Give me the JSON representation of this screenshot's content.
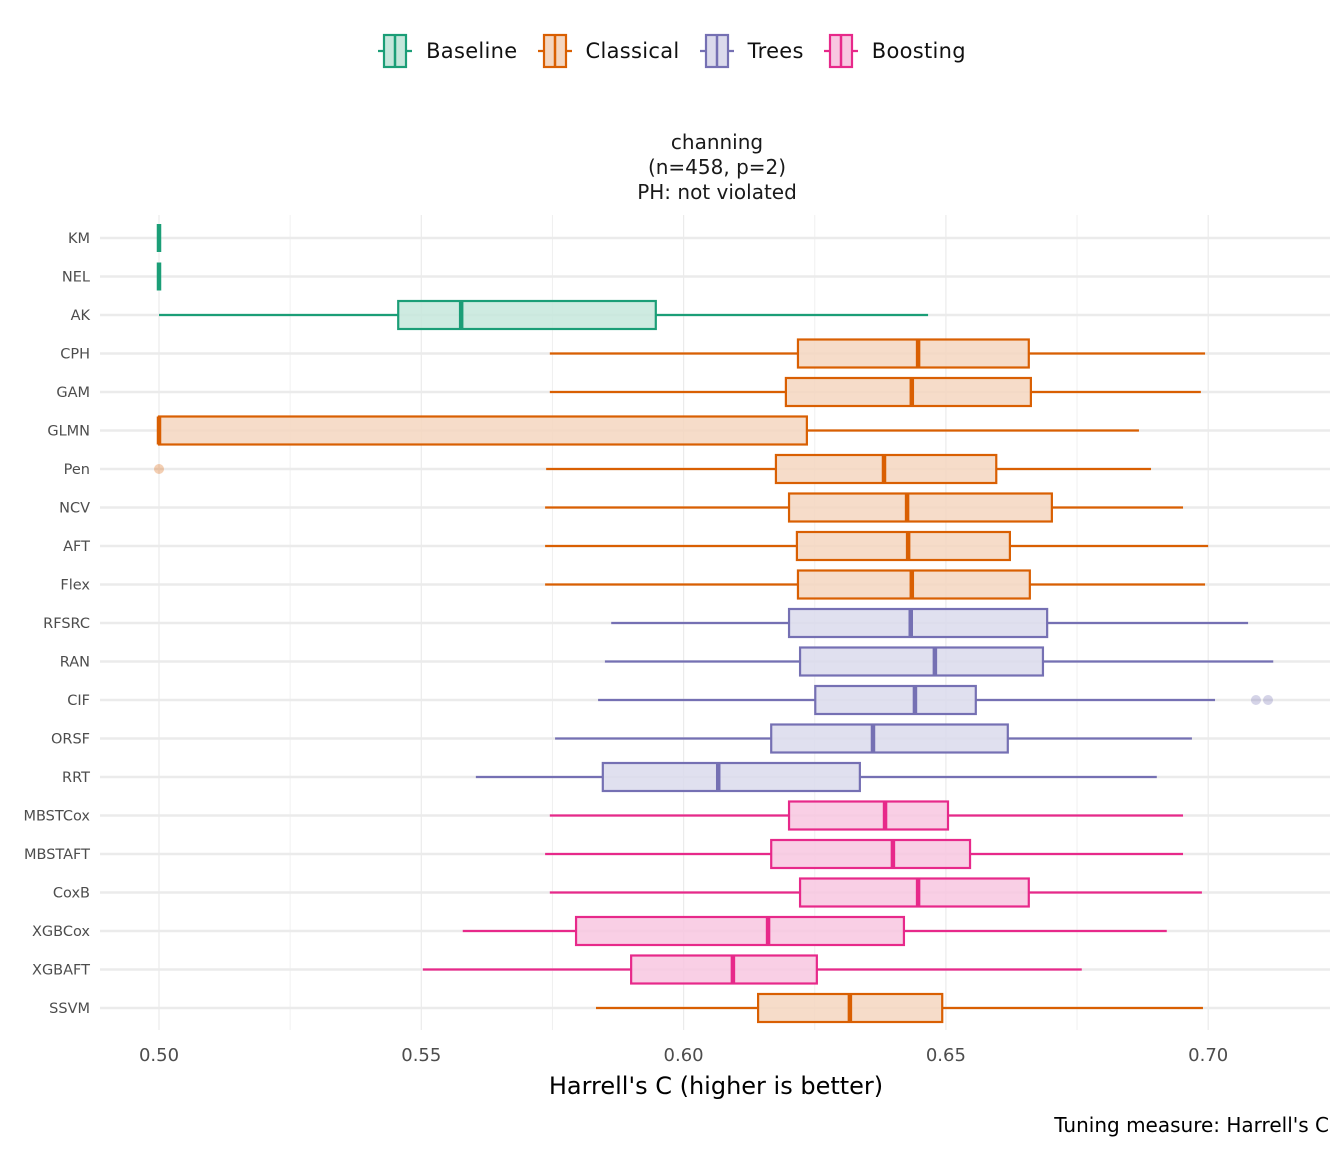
{
  "legend": {
    "items": [
      {
        "label": "Baseline",
        "group": "Baseline"
      },
      {
        "label": "Classical",
        "group": "Classical"
      },
      {
        "label": "Trees",
        "group": "Trees"
      },
      {
        "label": "Boosting",
        "group": "Boosting"
      }
    ]
  },
  "colors": {
    "Baseline": {
      "stroke": "#1b9e77",
      "fill": "#c5e7dc"
    },
    "Classical": {
      "stroke": "#d95f02",
      "fill": "#f4d6c0"
    },
    "Trees": {
      "stroke": "#7570b3",
      "fill": "#dbdaec"
    },
    "Boosting": {
      "stroke": "#e7298a",
      "fill": "#f8c7e1"
    }
  },
  "chart_data": {
    "type": "boxplot",
    "title": [
      "channing",
      "(n=458, p=2)",
      "PH: not violated"
    ],
    "xlabel": "Harrell's C (higher is better)",
    "ylabel": "",
    "caption": "Tuning measure: Harrell's C",
    "xlim": [
      0.489,
      0.723
    ],
    "xticks": [
      0.5,
      0.55,
      0.6,
      0.65,
      0.7
    ],
    "xtick_labels": [
      "0.50",
      "0.55",
      "0.60",
      "0.65",
      "0.70"
    ],
    "grid": true,
    "legend_position": "top",
    "categories": [
      "KM",
      "NEL",
      "AK",
      "CPH",
      "GAM",
      "GLMN",
      "Pen",
      "NCV",
      "AFT",
      "Flex",
      "RFSRC",
      "RAN",
      "CIF",
      "ORSF",
      "RRT",
      "MBSTCox",
      "MBSTAFT",
      "CoxB",
      "XGBCox",
      "XGBAFT",
      "SSVM"
    ],
    "boxes": [
      {
        "name": "KM",
        "group": "Baseline",
        "min": 0.5,
        "q1": 0.5,
        "median": 0.5,
        "q3": 0.5,
        "max": 0.5,
        "outliers": []
      },
      {
        "name": "NEL",
        "group": "Baseline",
        "min": 0.5,
        "q1": 0.5,
        "median": 0.5,
        "q3": 0.5,
        "max": 0.5,
        "outliers": []
      },
      {
        "name": "AK",
        "group": "Baseline",
        "min": 0.5,
        "q1": 0.5456,
        "median": 0.5576,
        "q3": 0.5947,
        "max": 0.6466,
        "outliers": []
      },
      {
        "name": "CPH",
        "group": "Classical",
        "min": 0.5745,
        "q1": 0.6218,
        "median": 0.6447,
        "q3": 0.6658,
        "max": 0.6994,
        "outliers": []
      },
      {
        "name": "GAM",
        "group": "Classical",
        "min": 0.5745,
        "q1": 0.6195,
        "median": 0.6435,
        "q3": 0.6662,
        "max": 0.6986,
        "outliers": []
      },
      {
        "name": "GLMN",
        "group": "Classical",
        "min": 0.5,
        "q1": 0.5,
        "median": 0.5,
        "q3": 0.6235,
        "max": 0.6868,
        "outliers": []
      },
      {
        "name": "Pen",
        "group": "Classical",
        "min": 0.5738,
        "q1": 0.6176,
        "median": 0.6382,
        "q3": 0.6596,
        "max": 0.6891,
        "outliers": [
          0.5
        ]
      },
      {
        "name": "NCV",
        "group": "Classical",
        "min": 0.5736,
        "q1": 0.6201,
        "median": 0.6426,
        "q3": 0.6702,
        "max": 0.6952,
        "outliers": []
      },
      {
        "name": "AFT",
        "group": "Classical",
        "min": 0.5736,
        "q1": 0.6216,
        "median": 0.6428,
        "q3": 0.6622,
        "max": 0.7,
        "outliers": []
      },
      {
        "name": "Flex",
        "group": "Classical",
        "min": 0.5736,
        "q1": 0.6218,
        "median": 0.6435,
        "q3": 0.666,
        "max": 0.6994,
        "outliers": []
      },
      {
        "name": "RFSRC",
        "group": "Trees",
        "min": 0.5862,
        "q1": 0.6201,
        "median": 0.6433,
        "q3": 0.6693,
        "max": 0.7076,
        "outliers": []
      },
      {
        "name": "RAN",
        "group": "Trees",
        "min": 0.585,
        "q1": 0.6222,
        "median": 0.6479,
        "q3": 0.6685,
        "max": 0.7124,
        "outliers": []
      },
      {
        "name": "CIF",
        "group": "Trees",
        "min": 0.5837,
        "q1": 0.6251,
        "median": 0.6441,
        "q3": 0.6557,
        "max": 0.7013,
        "outliers": [
          0.7091,
          0.7114
        ]
      },
      {
        "name": "ORSF",
        "group": "Trees",
        "min": 0.5755,
        "q1": 0.6167,
        "median": 0.6361,
        "q3": 0.6618,
        "max": 0.6969,
        "outliers": []
      },
      {
        "name": "RRT",
        "group": "Trees",
        "min": 0.5604,
        "q1": 0.5846,
        "median": 0.6066,
        "q3": 0.6336,
        "max": 0.6902,
        "outliers": []
      },
      {
        "name": "MBSTCox",
        "group": "Boosting",
        "min": 0.5745,
        "q1": 0.6201,
        "median": 0.6384,
        "q3": 0.6504,
        "max": 0.6952,
        "outliers": []
      },
      {
        "name": "MBSTAFT",
        "group": "Boosting",
        "min": 0.5736,
        "q1": 0.6167,
        "median": 0.6399,
        "q3": 0.6546,
        "max": 0.6952,
        "outliers": []
      },
      {
        "name": "CoxB",
        "group": "Boosting",
        "min": 0.5745,
        "q1": 0.6222,
        "median": 0.6447,
        "q3": 0.6658,
        "max": 0.6988,
        "outliers": []
      },
      {
        "name": "XGBCox",
        "group": "Boosting",
        "min": 0.5579,
        "q1": 0.5795,
        "median": 0.6161,
        "q3": 0.642,
        "max": 0.6921,
        "outliers": []
      },
      {
        "name": "XGBAFT",
        "group": "Boosting",
        "min": 0.5503,
        "q1": 0.59,
        "median": 0.6094,
        "q3": 0.6254,
        "max": 0.6759,
        "outliers": []
      },
      {
        "name": "SSVM",
        "group": "Classical",
        "min": 0.5833,
        "q1": 0.6142,
        "median": 0.6317,
        "q3": 0.6493,
        "max": 0.699,
        "outliers": []
      }
    ]
  }
}
